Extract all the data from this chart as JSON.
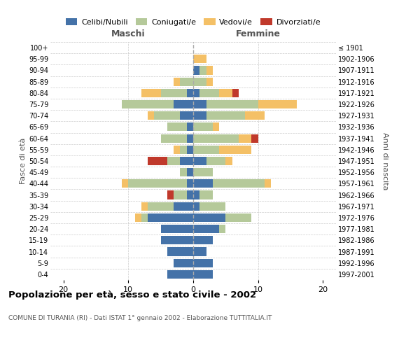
{
  "age_groups": [
    "100+",
    "95-99",
    "90-94",
    "85-89",
    "80-84",
    "75-79",
    "70-74",
    "65-69",
    "60-64",
    "55-59",
    "50-54",
    "45-49",
    "40-44",
    "35-39",
    "30-34",
    "25-29",
    "20-24",
    "15-19",
    "10-14",
    "5-9",
    "0-4"
  ],
  "birth_years": [
    "≤ 1901",
    "1902-1906",
    "1907-1911",
    "1912-1916",
    "1917-1921",
    "1922-1926",
    "1927-1931",
    "1932-1936",
    "1937-1941",
    "1942-1946",
    "1947-1951",
    "1952-1956",
    "1957-1961",
    "1962-1966",
    "1967-1971",
    "1972-1976",
    "1977-1981",
    "1982-1986",
    "1987-1991",
    "1992-1996",
    "1997-2001"
  ],
  "maschi": {
    "celibi": [
      0,
      0,
      0,
      0,
      1,
      3,
      2,
      1,
      1,
      1,
      2,
      1,
      1,
      1,
      3,
      7,
      5,
      5,
      4,
      3,
      4
    ],
    "coniugati": [
      0,
      0,
      0,
      2,
      4,
      8,
      4,
      3,
      4,
      1,
      2,
      1,
      9,
      2,
      4,
      1,
      0,
      0,
      0,
      0,
      0
    ],
    "vedovi": [
      0,
      0,
      0,
      1,
      3,
      0,
      1,
      0,
      0,
      1,
      0,
      0,
      1,
      0,
      1,
      1,
      0,
      0,
      0,
      0,
      0
    ],
    "divorziati": [
      0,
      0,
      0,
      0,
      0,
      0,
      0,
      0,
      0,
      0,
      3,
      0,
      0,
      1,
      0,
      0,
      0,
      0,
      0,
      0,
      0
    ]
  },
  "femmine": {
    "nubili": [
      0,
      0,
      1,
      0,
      1,
      2,
      2,
      0,
      0,
      0,
      2,
      0,
      3,
      1,
      1,
      5,
      4,
      3,
      2,
      3,
      3
    ],
    "coniugate": [
      0,
      0,
      1,
      2,
      3,
      8,
      6,
      3,
      7,
      4,
      3,
      3,
      8,
      2,
      4,
      4,
      1,
      0,
      0,
      0,
      0
    ],
    "vedove": [
      0,
      2,
      1,
      1,
      2,
      6,
      3,
      1,
      2,
      5,
      1,
      0,
      1,
      0,
      0,
      0,
      0,
      0,
      0,
      0,
      0
    ],
    "divorziate": [
      0,
      0,
      0,
      0,
      1,
      0,
      0,
      0,
      1,
      0,
      0,
      0,
      0,
      0,
      0,
      0,
      0,
      0,
      0,
      0,
      0
    ]
  },
  "colors": {
    "celibi_nubili": "#4472a8",
    "coniugati": "#b5c99a",
    "vedovi": "#f4c066",
    "divorziati": "#c0392b"
  },
  "xlim": [
    -22,
    22
  ],
  "xticks": [
    -20,
    -10,
    0,
    10,
    20
  ],
  "xticklabels": [
    "20",
    "10",
    "0",
    "10",
    "20"
  ],
  "title": "Popolazione per età, sesso e stato civile - 2002",
  "subtitle": "COMUNE DI TURANIA (RI) - Dati ISTAT 1° gennaio 2002 - Elaborazione TUTTITALIA.IT",
  "ylabel_left": "Fasce di età",
  "ylabel_right": "Anni di nascita",
  "label_maschi": "Maschi",
  "label_femmine": "Femmine",
  "legend_labels": [
    "Celibi/Nubili",
    "Coniugati/e",
    "Vedovi/e",
    "Divorziati/e"
  ],
  "background_color": "#ffffff",
  "grid_color": "#cccccc"
}
